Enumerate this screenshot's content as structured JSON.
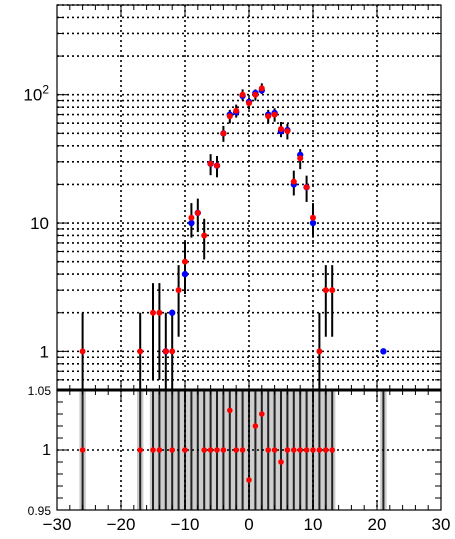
{
  "chart_data": [
    {
      "type": "scatter",
      "panel": "main",
      "title": "",
      "xlabel": "",
      "ylabel": "",
      "xlim": [
        -30,
        30
      ],
      "ylim": [
        0.5,
        500
      ],
      "yscale": "log",
      "grid": true,
      "y_tick_labels": [
        "1",
        "10",
        "10^2"
      ],
      "series": [
        {
          "color": "#ff0000",
          "x": [
            -26,
            -17,
            -15,
            -14,
            -13,
            -12,
            -11,
            -10,
            -9,
            -8,
            -7,
            -6,
            -5,
            -4,
            -3,
            -2,
            -1,
            0,
            1,
            2,
            3,
            4,
            5,
            6,
            7,
            8,
            9,
            10,
            11,
            12,
            13
          ],
          "y": [
            1,
            1,
            2,
            2,
            1,
            1,
            3,
            5,
            11,
            12,
            8,
            29,
            28,
            50,
            68,
            75,
            100,
            86,
            100,
            112,
            68,
            70,
            54,
            52,
            21,
            32,
            19,
            11,
            1,
            3,
            3
          ],
          "yerr": [
            1.0,
            1.0,
            1.4,
            1.4,
            1.0,
            1.0,
            1.7,
            2.2,
            3.3,
            3.5,
            2.8,
            5.4,
            5.3,
            7.1,
            8.2,
            8.7,
            10.0,
            9.3,
            10.0,
            10.6,
            8.2,
            8.4,
            7.3,
            7.2,
            4.6,
            5.7,
            4.4,
            3.3,
            1.0,
            1.7,
            1.7
          ]
        },
        {
          "color": "#0000ff",
          "x": [
            -13,
            -12,
            -10,
            -9,
            -8,
            -6,
            -5,
            -4,
            -3,
            -2,
            -1,
            0,
            1,
            2,
            3,
            4,
            5,
            6,
            7,
            8,
            9,
            10,
            21
          ],
          "y": [
            1,
            2,
            4,
            10,
            12,
            29,
            28,
            50,
            70,
            73,
            98,
            88,
            103,
            108,
            70,
            72,
            52,
            53,
            20,
            34,
            19,
            10,
            1
          ]
        }
      ]
    },
    {
      "type": "scatter",
      "panel": "ratio",
      "title": "",
      "xlabel": "",
      "ylabel": "",
      "xlim": [
        -30,
        30
      ],
      "ylim": [
        0.95,
        1.05
      ],
      "x_tick_labels": [
        "−30",
        "−20",
        "−10",
        "0",
        "10",
        "20",
        "30"
      ],
      "y_tick_labels": [
        "0.95",
        "1",
        "1.05"
      ],
      "grid": true,
      "bands": [
        -26,
        -17,
        -15,
        -14,
        -13,
        -12,
        -11,
        -10,
        -9,
        -8,
        -7,
        -6,
        -5,
        -4,
        -3,
        -2,
        -1,
        0,
        1,
        2,
        3,
        4,
        5,
        6,
        7,
        8,
        9,
        10,
        11,
        12,
        13,
        21
      ],
      "series": [
        {
          "color": "#ff0000",
          "x": [
            -26,
            -17,
            -15,
            -14,
            -12,
            -10,
            -7,
            -6,
            -5,
            -4,
            -3,
            -2,
            -1,
            0,
            1,
            2,
            3,
            4,
            5,
            6,
            7,
            8,
            9,
            10,
            11,
            12,
            13
          ],
          "y": [
            1.0,
            1.0,
            1.0,
            1.0,
            1.0,
            1.0,
            1.0,
            1.0,
            1.0,
            1.0,
            1.033,
            1.0,
            1.0,
            0.975,
            1.02,
            1.03,
            1.0,
            1.0,
            0.99,
            1.0,
            1.0,
            1.0,
            1.0,
            1.0,
            1.0,
            1.0,
            1.0
          ]
        }
      ]
    }
  ]
}
